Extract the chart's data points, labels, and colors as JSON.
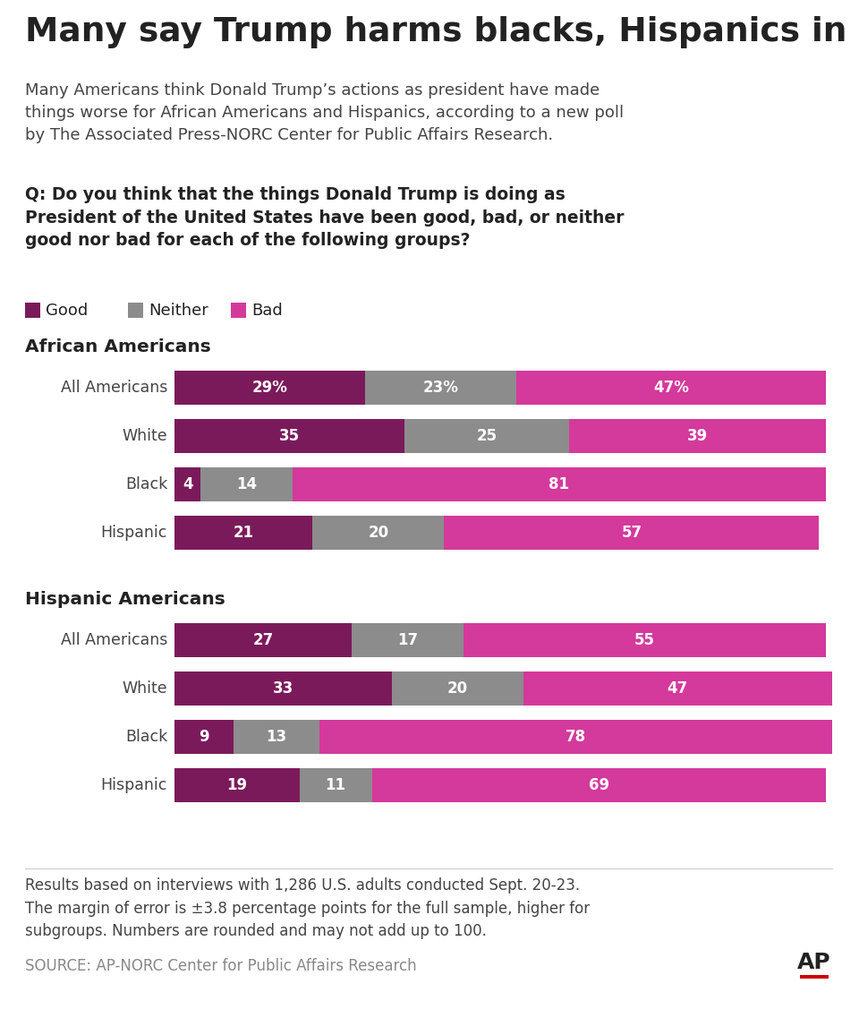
{
  "title": "Many say Trump harms blacks, Hispanics in US",
  "subtitle": "Many Americans think Donald Trump’s actions as president have made\nthings worse for African Americans and Hispanics, according to a new poll\nby The Associated Press-NORC Center for Public Affairs Research.",
  "question": "Q: Do you think that the things Donald Trump is doing as\nPresident of the United States have been good, bad, or neither\ngood nor bad for each of the following groups?",
  "colors": {
    "good": "#7B1A5B",
    "neither": "#8C8C8C",
    "bad": "#D4399C",
    "background": "#FFFFFF",
    "text_dark": "#222222",
    "text_mid": "#444444",
    "text_light": "#888888",
    "ap_red": "#CC0000"
  },
  "sections": [
    {
      "title": "African Americans",
      "rows": [
        {
          "label": "All Americans",
          "good": 29,
          "neither": 23,
          "bad": 47,
          "good_label": "29%",
          "neither_label": "23%",
          "bad_label": "47%"
        },
        {
          "label": "White",
          "good": 35,
          "neither": 25,
          "bad": 39,
          "good_label": "35",
          "neither_label": "25",
          "bad_label": "39"
        },
        {
          "label": "Black",
          "good": 4,
          "neither": 14,
          "bad": 81,
          "good_label": "4",
          "neither_label": "14",
          "bad_label": "81"
        },
        {
          "label": "Hispanic",
          "good": 21,
          "neither": 20,
          "bad": 57,
          "good_label": "21",
          "neither_label": "20",
          "bad_label": "57"
        }
      ]
    },
    {
      "title": "Hispanic Americans",
      "rows": [
        {
          "label": "All Americans",
          "good": 27,
          "neither": 17,
          "bad": 55,
          "good_label": "27",
          "neither_label": "17",
          "bad_label": "55"
        },
        {
          "label": "White",
          "good": 33,
          "neither": 20,
          "bad": 47,
          "good_label": "33",
          "neither_label": "20",
          "bad_label": "47"
        },
        {
          "label": "Black",
          "good": 9,
          "neither": 13,
          "bad": 78,
          "good_label": "9",
          "neither_label": "13",
          "bad_label": "78"
        },
        {
          "label": "Hispanic",
          "good": 19,
          "neither": 11,
          "bad": 69,
          "good_label": "19",
          "neither_label": "11",
          "bad_label": "69"
        }
      ]
    }
  ],
  "footnote": "Results based on interviews with 1,286 U.S. adults conducted Sept. 20-23.\nThe margin of error is ±3.8 percentage points for the full sample, higher for\nsubgroups. Numbers are rounded and may not add up to 100.",
  "source": "SOURCE: AP-NORC Center for Public Affairs Research"
}
